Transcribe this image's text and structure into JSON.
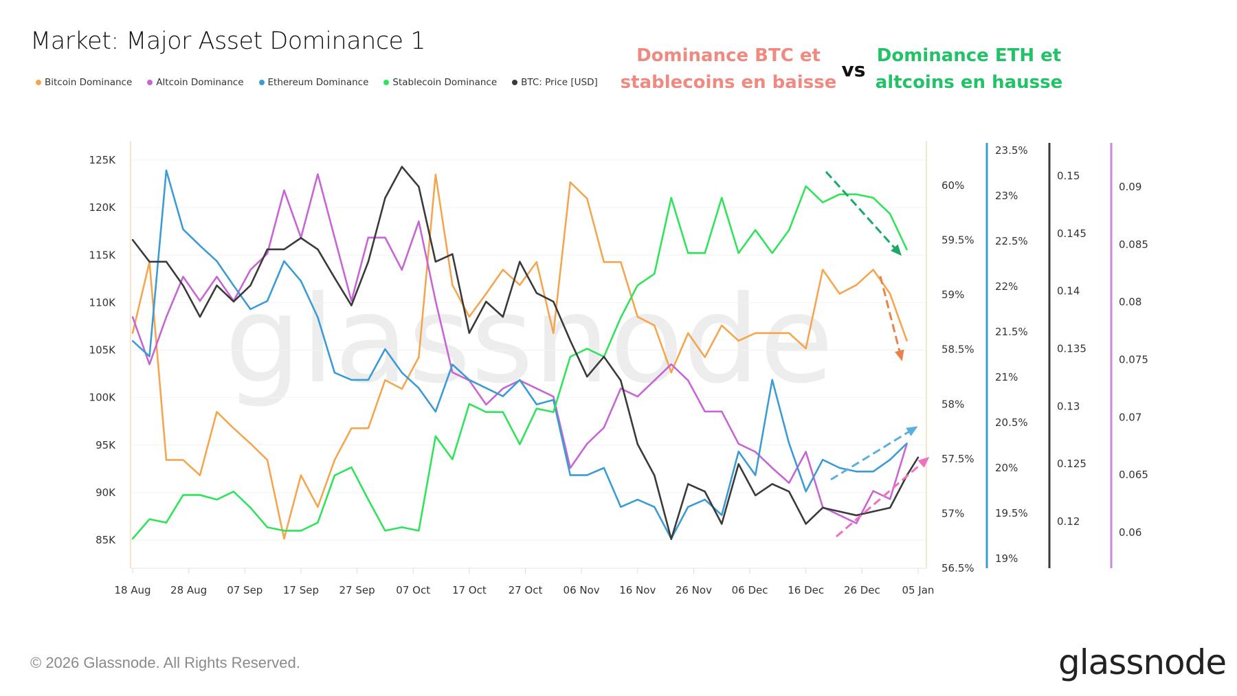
{
  "header": {
    "title": "Market: Major Asset Dominance 1",
    "annotation_left": [
      "Dominance BTC et",
      "stablecoins en baisse"
    ],
    "annotation_vs": "vs",
    "annotation_right": [
      "Dominance ETH et",
      "altcoins en hausse"
    ],
    "annotation_left_color": "#f08a80",
    "annotation_right_color": "#22c266"
  },
  "legend": [
    {
      "label": "Bitcoin Dominance",
      "color": "#f4a64f"
    },
    {
      "label": "Altcoin Dominance",
      "color": "#c665d3"
    },
    {
      "label": "Ethereum Dominance",
      "color": "#3b9bd3"
    },
    {
      "label": "Stablecoin Dominance",
      "color": "#2fe35b"
    },
    {
      "label": "BTC: Price [USD]",
      "color": "#3a3a3a"
    }
  ],
  "footer": {
    "copyright": "© 2026 Glassnode. All Rights Reserved.",
    "logo": "glassnode",
    "watermark": "glassnode"
  },
  "chart_data": {
    "type": "line",
    "title": "Market: Major Asset Dominance 1",
    "grid": true,
    "legend_position": "top-left",
    "x_ticks": [
      "18 Aug",
      "28 Aug",
      "07 Sep",
      "17 Sep",
      "27 Sep",
      "07 Oct",
      "17 Oct",
      "27 Oct",
      "06 Nov",
      "16 Nov",
      "26 Nov",
      "06 Dec",
      "16 Dec",
      "26 Dec",
      "05 Jan"
    ],
    "x": [
      "18 Aug",
      "21 Aug",
      "24 Aug",
      "27 Aug",
      "30 Aug",
      "02 Sep",
      "05 Sep",
      "08 Sep",
      "11 Sep",
      "14 Sep",
      "17 Sep",
      "20 Sep",
      "23 Sep",
      "26 Sep",
      "29 Sep",
      "02 Oct",
      "05 Oct",
      "08 Oct",
      "11 Oct",
      "14 Oct",
      "17 Oct",
      "20 Oct",
      "23 Oct",
      "26 Oct",
      "29 Oct",
      "01 Nov",
      "04 Nov",
      "07 Nov",
      "10 Nov",
      "13 Nov",
      "16 Nov",
      "19 Nov",
      "22 Nov",
      "25 Nov",
      "28 Nov",
      "01 Dec",
      "04 Dec",
      "07 Dec",
      "10 Dec",
      "13 Dec",
      "16 Dec",
      "19 Dec",
      "22 Dec",
      "25 Dec",
      "28 Dec",
      "31 Dec",
      "03 Jan",
      "05 Jan"
    ],
    "axes": {
      "price": {
        "ticks": [
          "125K",
          "120K",
          "115K",
          "110K",
          "105K",
          "100K",
          "95K",
          "90K",
          "85K"
        ],
        "range": [
          85,
          125
        ],
        "unit": "K USD",
        "color": "#3a3a3a"
      },
      "btc_dom": {
        "ticks": [
          "60%",
          "59.5%",
          "59%",
          "58.5%",
          "58%",
          "57.5%",
          "57%",
          "56.5%"
        ],
        "range": [
          56.5,
          60
        ],
        "color": "#f8dcc0"
      },
      "eth_dom": {
        "ticks": [
          "23.5%",
          "23%",
          "22.5%",
          "22%",
          "21.5%",
          "21%",
          "20.5%",
          "20%",
          "19.5%",
          "19%"
        ],
        "range": [
          19,
          23.5
        ],
        "color": "#3b9bd3"
      },
      "stable_dom": {
        "ticks": [
          "0.15",
          "0.145",
          "0.14",
          "0.135",
          "0.13",
          "0.125",
          "0.12"
        ],
        "range": [
          0.12,
          0.15
        ],
        "color": "#3a3a3a"
      },
      "alt_dom": {
        "ticks": [
          "0.09",
          "0.085",
          "0.08",
          "0.075",
          "0.07",
          "0.065",
          "0.06"
        ],
        "range": [
          0.06,
          0.09
        ],
        "color": "#c88ad6"
      }
    },
    "series": [
      {
        "name": "Bitcoin Dominance",
        "axis": "btc_dom",
        "color": "#f4a64f",
        "values": [
          58.65,
          59.3,
          57.49,
          57.49,
          57.35,
          57.93,
          57.78,
          57.64,
          57.49,
          56.77,
          57.35,
          57.06,
          57.49,
          57.78,
          57.78,
          58.22,
          58.14,
          58.43,
          60.1,
          59.09,
          58.8,
          59.01,
          59.23,
          59.09,
          59.3,
          58.65,
          60.03,
          59.88,
          59.3,
          59.3,
          58.8,
          58.72,
          58.29,
          58.65,
          58.43,
          58.72,
          58.58,
          58.65,
          58.65,
          58.65,
          58.51,
          59.23,
          59.01,
          59.09,
          59.23,
          59.01,
          58.58,
          null
        ]
      },
      {
        "name": "Altcoin Dominance",
        "axis": "alt_dom",
        "color": "#c665d3",
        "values": [
          0.0787,
          0.0746,
          0.0787,
          0.0822,
          0.0801,
          0.0822,
          0.0801,
          0.0828,
          0.0842,
          0.0897,
          0.0856,
          0.0911,
          0.0856,
          0.0801,
          0.0856,
          0.0856,
          0.0828,
          0.087,
          0.0801,
          0.0739,
          0.0732,
          0.0711,
          0.0725,
          0.0732,
          0.0725,
          0.0718,
          0.0656,
          0.0677,
          0.0691,
          0.0725,
          0.0718,
          0.0732,
          0.0746,
          0.0732,
          0.0705,
          0.0705,
          0.0677,
          0.067,
          0.0656,
          0.0643,
          0.067,
          0.0622,
          0.0615,
          0.0608,
          0.0636,
          0.0629,
          0.0677,
          null
        ]
      },
      {
        "name": "Ethereum Dominance",
        "axis": "eth_dom",
        "color": "#3b9bd3",
        "values": [
          21.4,
          21.23,
          23.28,
          22.63,
          22.45,
          22.28,
          22.01,
          21.75,
          21.84,
          22.28,
          22.06,
          21.66,
          21.05,
          20.97,
          20.97,
          21.31,
          21.05,
          20.88,
          20.62,
          21.14,
          20.97,
          20.88,
          20.79,
          20.97,
          20.7,
          20.75,
          19.92,
          19.92,
          20.0,
          19.57,
          19.65,
          19.57,
          19.22,
          19.57,
          19.65,
          19.48,
          20.18,
          19.92,
          20.97,
          20.27,
          19.74,
          20.09,
          20.0,
          19.96,
          19.96,
          20.09,
          20.27,
          null
        ]
      },
      {
        "name": "Stablecoin Dominance",
        "axis": "stable_dom",
        "color": "#2fe35b",
        "values": [
          0.1185,
          0.1202,
          0.1199,
          0.1223,
          0.1223,
          0.1219,
          0.1226,
          0.1212,
          0.1195,
          0.1192,
          0.1192,
          0.1199,
          0.124,
          0.1247,
          0.1219,
          0.1192,
          0.1195,
          0.1192,
          0.1274,
          0.1254,
          0.1302,
          0.1295,
          0.1295,
          0.1267,
          0.1298,
          0.1295,
          0.1343,
          0.135,
          0.1343,
          0.1377,
          0.1405,
          0.1415,
          0.1481,
          0.1433,
          0.1433,
          0.1481,
          0.1433,
          0.1453,
          0.1433,
          0.1453,
          0.1491,
          0.1477,
          0.1484,
          0.1484,
          0.1481,
          0.1467,
          0.1436,
          null
        ]
      },
      {
        "name": "BTC: Price [USD]",
        "axis": "price",
        "color": "#3a3a3a",
        "values": [
          116.6,
          114.3,
          114.3,
          111.8,
          108.5,
          111.8,
          110.1,
          111.8,
          115.6,
          115.6,
          116.8,
          115.6,
          112.6,
          109.7,
          114.3,
          121.0,
          124.3,
          122.2,
          114.3,
          115.1,
          106.8,
          110.1,
          108.5,
          114.3,
          111.0,
          110.1,
          106.0,
          102.2,
          104.3,
          101.8,
          95.1,
          91.8,
          85.1,
          90.9,
          90.1,
          86.7,
          93.0,
          89.7,
          90.9,
          90.1,
          86.7,
          88.4,
          88.0,
          87.6,
          88.0,
          88.4,
          91.8,
          93.7
        ]
      }
    ],
    "trend_arrows": [
      {
        "series": "Stablecoin Dominance",
        "direction": "down",
        "color": "#1aa866"
      },
      {
        "series": "Bitcoin Dominance",
        "direction": "down",
        "color": "#e8834a"
      },
      {
        "series": "Ethereum Dominance",
        "direction": "up",
        "color": "#5aaee0"
      },
      {
        "series": "Altcoin Dominance",
        "direction": "up",
        "color": "#f06fc0"
      }
    ]
  }
}
